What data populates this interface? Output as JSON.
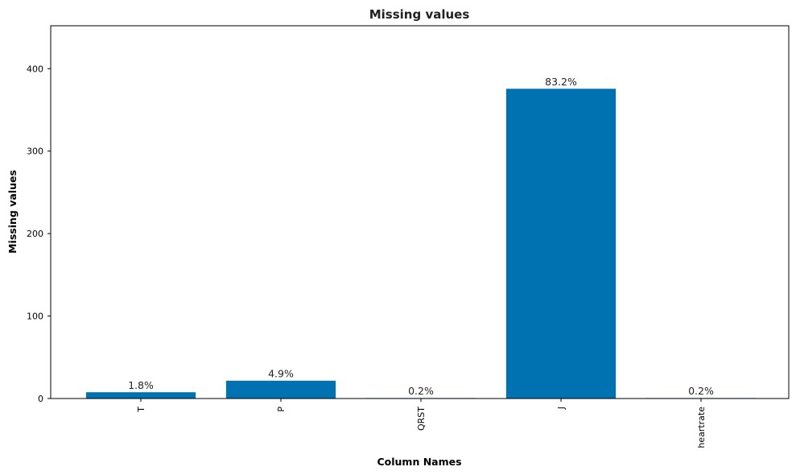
{
  "chart_data": {
    "type": "bar",
    "title": "Missing values",
    "xlabel": "Column Names",
    "ylabel": "Missing values",
    "categories": [
      "T",
      "P",
      "QRST",
      "J",
      "heartrate"
    ],
    "values": [
      8,
      22,
      1,
      376,
      1
    ],
    "data_labels": [
      "1.8%",
      "4.9%",
      "0.2%",
      "83.2%",
      "0.2%"
    ],
    "ylim": [
      0,
      452
    ],
    "yticks": [
      0,
      100,
      200,
      300,
      400
    ],
    "bar_color": "#0072b2",
    "grid": false,
    "x_tick_rotation": "vertical"
  }
}
